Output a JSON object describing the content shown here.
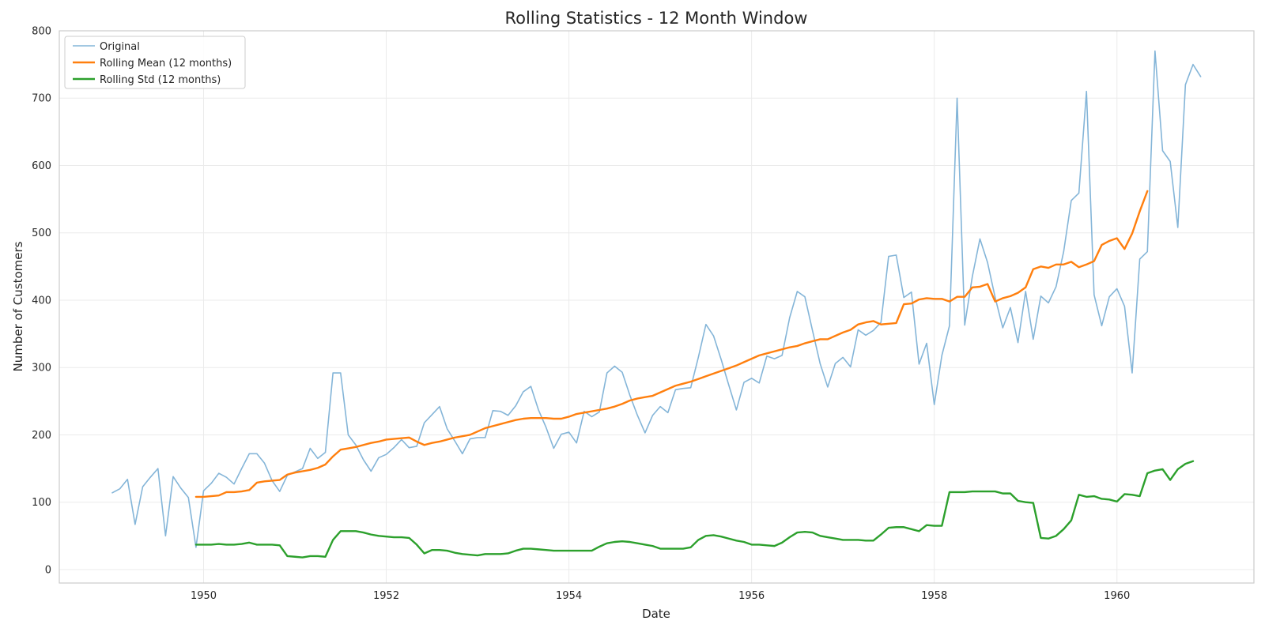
{
  "chart_data": {
    "type": "line",
    "title": "Rolling Statistics - 12 Month Window",
    "xlabel": "Date",
    "ylabel": "Number of Customers",
    "x_start": "1949-01",
    "x_end": "1960-12",
    "xlim": [
      1948.42,
      1961.5
    ],
    "ylim": [
      -20,
      800
    ],
    "x_ticks": [
      1950,
      1952,
      1954,
      1956,
      1958,
      1960
    ],
    "y_ticks": [
      0,
      100,
      200,
      300,
      400,
      500,
      600,
      700,
      800
    ],
    "grid": true,
    "legend_position": "top-left",
    "series": [
      {
        "name": "Original",
        "color": "#84b5d8",
        "width": 1.6,
        "start_index": 0,
        "values": [
          114,
          120,
          134,
          67,
          123,
          137,
          150,
          50,
          138,
          121,
          107,
          33,
          117,
          128,
          143,
          137,
          127,
          150,
          172,
          172,
          158,
          132,
          116,
          140,
          145,
          150,
          180,
          165,
          174,
          292,
          292,
          200,
          185,
          163,
          146,
          166,
          171,
          181,
          193,
          181,
          183,
          218,
          230,
          242,
          209,
          191,
          172,
          194,
          196,
          196,
          236,
          235,
          229,
          243,
          264,
          272,
          237,
          211,
          180,
          201,
          204,
          188,
          235,
          227,
          234,
          292,
          302,
          293,
          259,
          229,
          203,
          229,
          242,
          233,
          267,
          269,
          270,
          315,
          364,
          347,
          312,
          274,
          237,
          278,
          284,
          277,
          317,
          313,
          318,
          374,
          413,
          405,
          355,
          306,
          271,
          306,
          315,
          301,
          356,
          348,
          355,
          367,
          465,
          467,
          404,
          412,
          305,
          336,
          245,
          318,
          362,
          700,
          363,
          435,
          491,
          456,
          404,
          359,
          389,
          337,
          413,
          342,
          406,
          396,
          420,
          472,
          548,
          559,
          710,
          408,
          362,
          405,
          417,
          391,
          292,
          461,
          472,
          770,
          622,
          606,
          508,
          720,
          750,
          732
        ]
      },
      {
        "name": "Rolling Mean (12 months)",
        "color": "#ff7f0e",
        "width": 2.4,
        "start_index": 11,
        "values": [
          108,
          108,
          109,
          110,
          115,
          115,
          116,
          118,
          129,
          131,
          132,
          133,
          141,
          144,
          146,
          148,
          151,
          156,
          168,
          178,
          180,
          182,
          185,
          188,
          190,
          193,
          194,
          195,
          196,
          190,
          185,
          188,
          190,
          193,
          196,
          198,
          200,
          205,
          210,
          213,
          216,
          219,
          222,
          224,
          225,
          225,
          225,
          224,
          224,
          227,
          231,
          233,
          235,
          237,
          239,
          242,
          246,
          251,
          254,
          256,
          258,
          263,
          268,
          273,
          276,
          279,
          283,
          287,
          291,
          295,
          299,
          303,
          308,
          313,
          318,
          321,
          324,
          327,
          330,
          332,
          336,
          339,
          342,
          342,
          347,
          352,
          356,
          364,
          367,
          369,
          364,
          365,
          366,
          394,
          395,
          401,
          403,
          402,
          402,
          398,
          405,
          405,
          419,
          420,
          424,
          398,
          403,
          406,
          411,
          419,
          446,
          450,
          448,
          453,
          453,
          457,
          449,
          453,
          458,
          482,
          488,
          492,
          476,
          499,
          532,
          562
        ]
      },
      {
        "name": "Rolling Std (12 months)",
        "color": "#2ca02c",
        "width": 2.4,
        "start_index": 11,
        "values": [
          37,
          37,
          37,
          38,
          37,
          37,
          38,
          40,
          37,
          37,
          37,
          36,
          20,
          19,
          18,
          20,
          20,
          19,
          44,
          57,
          57,
          57,
          55,
          52,
          50,
          49,
          48,
          48,
          47,
          37,
          24,
          29,
          29,
          28,
          25,
          23,
          22,
          21,
          23,
          23,
          23,
          24,
          28,
          31,
          31,
          30,
          29,
          28,
          28,
          28,
          28,
          28,
          28,
          34,
          39,
          41,
          42,
          41,
          39,
          37,
          35,
          31,
          31,
          31,
          31,
          33,
          44,
          50,
          51,
          49,
          46,
          43,
          41,
          37,
          37,
          36,
          35,
          40,
          48,
          55,
          56,
          55,
          50,
          48,
          46,
          44,
          44,
          44,
          43,
          43,
          52,
          62,
          63,
          63,
          60,
          57,
          66,
          65,
          65,
          115,
          115,
          115,
          116,
          116,
          116,
          116,
          113,
          113,
          102,
          100,
          99,
          47,
          46,
          50,
          60,
          73,
          111,
          108,
          109,
          105,
          104,
          101,
          112,
          111,
          109,
          143,
          147,
          149,
          133,
          149,
          157,
          161
        ]
      }
    ]
  }
}
